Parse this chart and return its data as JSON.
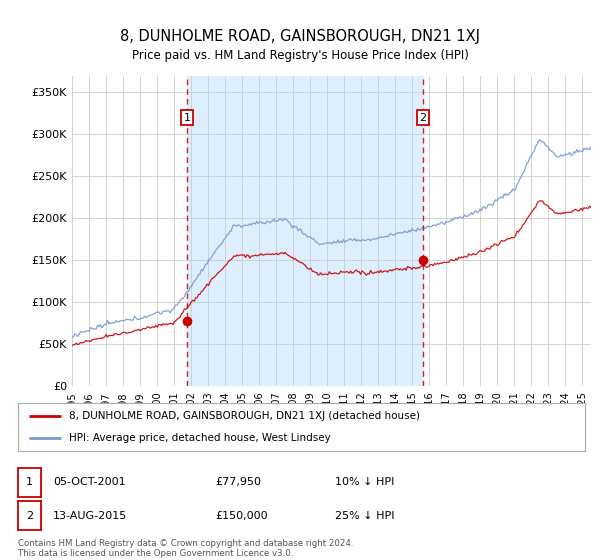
{
  "title": "8, DUNHOLME ROAD, GAINSBOROUGH, DN21 1XJ",
  "subtitle": "Price paid vs. HM Land Registry's House Price Index (HPI)",
  "ylim": [
    0,
    370000
  ],
  "yticks": [
    0,
    50000,
    100000,
    150000,
    200000,
    250000,
    300000,
    350000
  ],
  "ytick_labels": [
    "£0",
    "£50K",
    "£100K",
    "£150K",
    "£200K",
    "£250K",
    "£300K",
    "£350K"
  ],
  "background_color": "#ffffff",
  "shade_color": "#ddeeff",
  "grid_color": "#cccccc",
  "line1_color": "#cc0000",
  "line2_color": "#7799cc",
  "vline_color": "#cc0000",
  "legend_label1": "8, DUNHOLME ROAD, GAINSBOROUGH, DN21 1XJ (detached house)",
  "legend_label2": "HPI: Average price, detached house, West Lindsey",
  "sale1_date": "05-OCT-2001",
  "sale1_price": "£77,950",
  "sale1_hpi": "10% ↓ HPI",
  "sale1_x": 2001.75,
  "sale1_y": 77950,
  "sale2_date": "13-AUG-2015",
  "sale2_price": "£150,000",
  "sale2_hpi": "25% ↓ HPI",
  "sale2_x": 2015.62,
  "sale2_y": 150000,
  "footer": "Contains HM Land Registry data © Crown copyright and database right 2024.\nThis data is licensed under the Open Government Licence v3.0.",
  "xmin": 1995,
  "xmax": 2025.5
}
